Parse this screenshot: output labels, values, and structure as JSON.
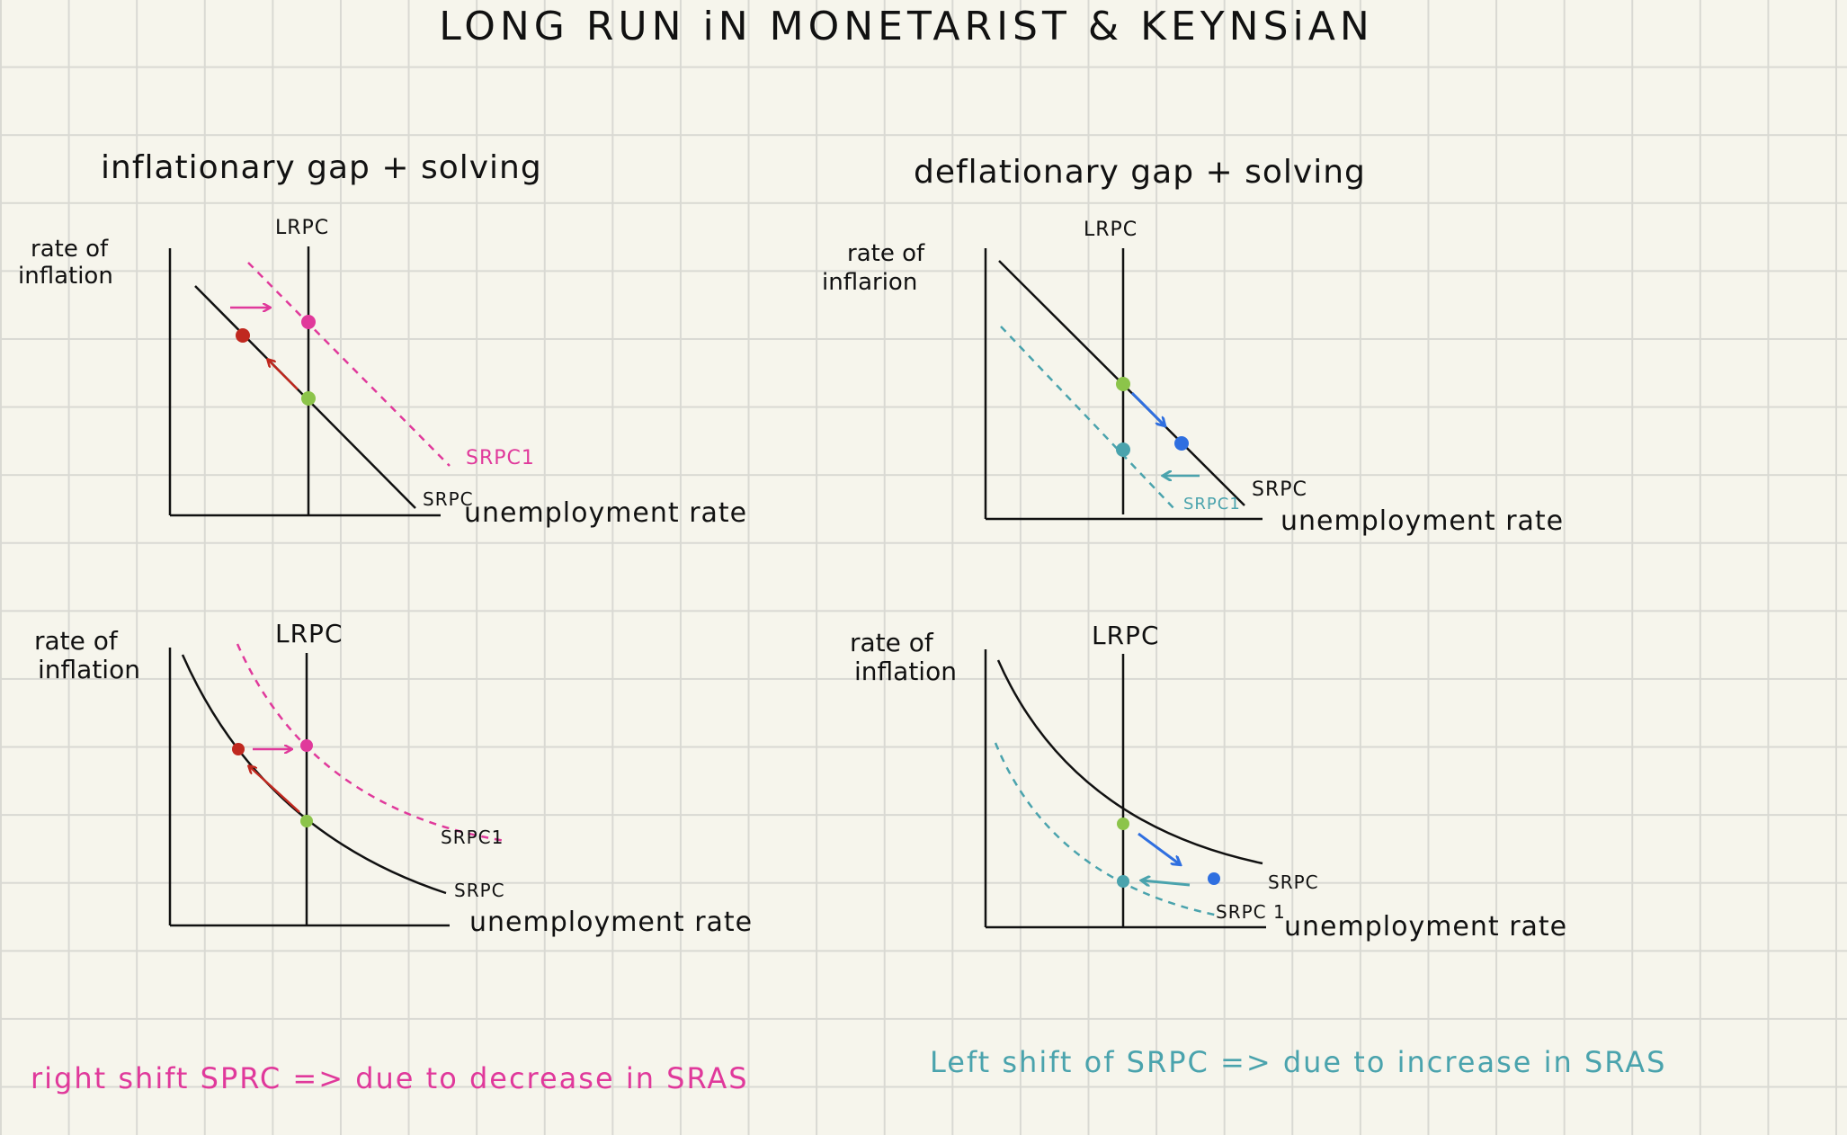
{
  "title": "LONG RUN iN MONETARIST & KEYNSiAN",
  "panels": {
    "inflationary_linear": {
      "subtitle": "inflationary gap + solving",
      "y_label_1": "rate of",
      "y_label_2": "inflation",
      "x_label": "unemployment rate",
      "lrpc": "LRPC",
      "srpc": "SRPC",
      "srpc_shifted": "SRPC1"
    },
    "deflationary_linear": {
      "subtitle": "deflationary gap + solving",
      "y_label_1": "rate of",
      "y_label_2": "inflarion",
      "x_label": "unemployment rate",
      "lrpc": "LRPC",
      "srpc": "SRPC",
      "srpc_shifted": "SRPC1"
    },
    "inflationary_curved": {
      "y_label_1": "rate of",
      "y_label_2": "inflation",
      "x_label": "unemployment rate",
      "lrpc": "LRPC",
      "srpc": "SRPC",
      "srpc_shifted": "SRPC1"
    },
    "deflationary_curved": {
      "y_label_1": "rate of",
      "y_label_2": "inflation",
      "x_label": "unemployment rate",
      "lrpc": "LRPC",
      "srpc": "SRPC",
      "srpc_shifted": "SRPC 1"
    }
  },
  "notes": {
    "left": "right shift SPRC => due to decrease in SRAS",
    "right": "Left shift of SRPC => due to increase in SRAS"
  },
  "colors": {
    "ink": "#111111",
    "pink": "#e0399b",
    "red": "#c0281f",
    "green": "#8cc44a",
    "teal": "#4aa3ad",
    "blue": "#2f6fe0",
    "paper": "#f6f5ec",
    "grid": "#d9d9d3"
  }
}
